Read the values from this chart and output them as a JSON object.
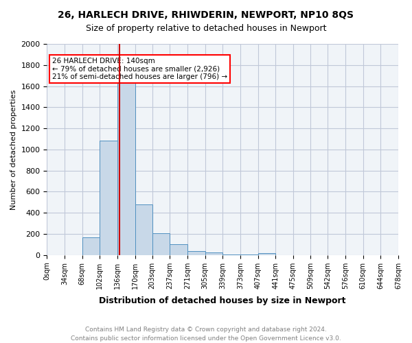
{
  "title": "26, HARLECH DRIVE, RHIWDERIN, NEWPORT, NP10 8QS",
  "subtitle": "Size of property relative to detached houses in Newport",
  "xlabel": "Distribution of detached houses by size in Newport",
  "ylabel": "Number of detached properties",
  "footnote1": "Contains HM Land Registry data © Crown copyright and database right 2024.",
  "footnote2": "Contains public sector information licensed under the Open Government Licence v3.0.",
  "annotation_line1": "26 HARLECH DRIVE: 140sqm",
  "annotation_line2": "← 79% of detached houses are smaller (2,926)",
  "annotation_line3": "21% of semi-detached houses are larger (796) →",
  "property_size": 140,
  "bar_color": "#c8d8e8",
  "bar_edge_color": "#5090c0",
  "red_line_color": "#cc0000",
  "grid_color": "#c0c8d8",
  "background_color": "#f0f4f8",
  "bins": [
    0,
    34,
    68,
    102,
    136,
    170,
    203,
    237,
    271,
    305,
    339,
    373,
    407,
    441,
    475,
    509,
    542,
    576,
    610,
    644,
    678
  ],
  "counts": [
    0,
    0,
    165,
    1085,
    1635,
    480,
    205,
    100,
    40,
    23,
    8,
    8,
    18,
    0,
    0,
    0,
    0,
    0,
    0,
    0
  ],
  "ylim": [
    0,
    2000
  ],
  "yticks": [
    0,
    200,
    400,
    600,
    800,
    1000,
    1200,
    1400,
    1600,
    1800,
    2000
  ]
}
